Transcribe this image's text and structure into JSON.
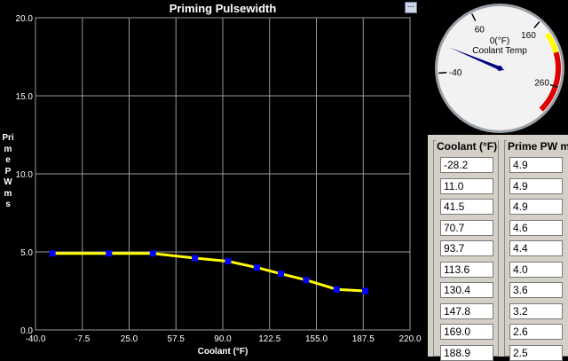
{
  "chart_data": {
    "type": "line",
    "title": "Priming Pulsewidth",
    "xlabel": "Coolant (°F)",
    "ylabel": "Prime PW ms",
    "x": [
      -28.2,
      11.0,
      41.5,
      70.7,
      93.7,
      113.6,
      130.4,
      147.8,
      169.0,
      188.9
    ],
    "series": [
      {
        "values": [
          4.9,
          4.9,
          4.9,
          4.6,
          4.4,
          4.0,
          3.6,
          3.2,
          2.6,
          2.5
        ]
      }
    ],
    "xlim": [
      -40.0,
      220.0
    ],
    "ylim": [
      0.0,
      20.0
    ],
    "xticks": [
      "-40.0",
      "-7.5",
      "25.0",
      "57.5",
      "90.0",
      "122.5",
      "155.0",
      "187.5",
      "220.0"
    ],
    "yticks": [
      "0.0",
      "5.0",
      "10.0",
      "15.0",
      "20.0"
    ],
    "grid": true,
    "line_color": "#ffff00",
    "point_color": "#0000ff"
  },
  "menu_button": "...",
  "gauge": {
    "value_label": "0(°F)",
    "title": "Coolant Temp",
    "value": 0,
    "min": -100,
    "max": 300,
    "tick_labels": [
      {
        "value": -40,
        "label": "-40"
      },
      {
        "value": 60,
        "label": "60"
      },
      {
        "value": 160,
        "label": "160"
      },
      {
        "value": 260,
        "label": "260"
      }
    ],
    "warning_color": "#ffff00",
    "danger_color": "#dd0000",
    "needle_color": "#000080"
  },
  "table": {
    "col1_header": "Coolant (°F)",
    "col2_header": "Prime PW m",
    "rows": [
      {
        "coolant": "-28.2",
        "pw": "4.9"
      },
      {
        "coolant": "11.0",
        "pw": "4.9"
      },
      {
        "coolant": "41.5",
        "pw": "4.9"
      },
      {
        "coolant": "70.7",
        "pw": "4.6"
      },
      {
        "coolant": "93.7",
        "pw": "4.4"
      },
      {
        "coolant": "113.6",
        "pw": "4.0"
      },
      {
        "coolant": "130.4",
        "pw": "3.6"
      },
      {
        "coolant": "147.8",
        "pw": "3.2"
      },
      {
        "coolant": "169.0",
        "pw": "2.6"
      },
      {
        "coolant": "188.9",
        "pw": "2.5"
      }
    ]
  }
}
